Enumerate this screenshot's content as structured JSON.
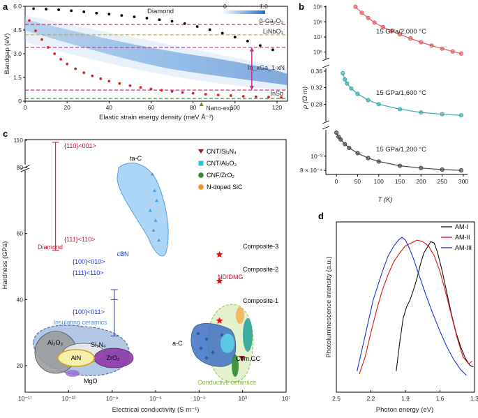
{
  "panels": {
    "a": "a",
    "b": "b",
    "c": "c",
    "d": "d"
  },
  "chart_data": [
    {
      "panel": "a",
      "type": "scatter",
      "title": "Diamond",
      "xlabel": "Elastic strain energy density (meV Å⁻³)",
      "ylabel": "Bandgap (eV)",
      "xlim": [
        0,
        125
      ],
      "ylim": [
        0,
        6.0
      ],
      "xticks": [
        "0",
        "20",
        "40",
        "60",
        "80",
        "100",
        "120"
      ],
      "yticks": [
        "0",
        "1.5",
        "3.0",
        "4.5",
        "6.0"
      ],
      "colorbar": {
        "min": "0",
        "max": "1.0"
      },
      "reference_lines": [
        {
          "label": "β-Ga₂O₃",
          "value": 4.85,
          "color": "#b03060"
        },
        {
          "label": "LiNbO₃",
          "value": 4.2,
          "color": "#d4a017"
        },
        {
          "label": "In_xGa_1-xN",
          "value": 3.4,
          "color": "#c0308a"
        },
        {
          "label": "InSb",
          "value": 0.7,
          "color": "#c0308a"
        },
        {
          "label": "",
          "value": 0.17,
          "color": "#2a9d3a"
        }
      ],
      "annotations": [
        "Nano-exp."
      ],
      "ingan_range": [
        0.7,
        3.4
      ],
      "series": [
        {
          "name": "upper bound",
          "color": "#000000",
          "x": [
            4,
            10,
            16,
            22,
            28,
            34,
            40,
            46,
            52,
            58,
            64,
            70,
            76,
            82,
            88,
            94,
            100,
            106,
            112,
            118
          ],
          "y": [
            5.85,
            5.82,
            5.78,
            5.72,
            5.65,
            5.57,
            5.5,
            5.42,
            5.33,
            5.25,
            5.15,
            5.05,
            4.9,
            4.72,
            4.52,
            4.3,
            4.05,
            3.8,
            3.52,
            3.25
          ]
        },
        {
          "name": "lower bound",
          "color": "#e02020",
          "x": [
            2,
            5,
            8,
            11,
            14,
            17,
            20,
            24,
            28,
            32,
            36,
            40,
            45,
            50,
            55,
            60,
            65,
            70,
            75,
            80,
            86,
            92,
            98,
            104,
            110,
            116,
            122
          ],
          "y": [
            5.1,
            4.45,
            3.9,
            3.4,
            3.0,
            2.65,
            2.35,
            2.05,
            1.8,
            1.6,
            1.42,
            1.27,
            1.12,
            0.98,
            0.87,
            0.77,
            0.69,
            0.62,
            0.55,
            0.5,
            0.44,
            0.39,
            0.35,
            0.31,
            0.28,
            0.26,
            0.24
          ]
        }
      ]
    },
    {
      "panel": "b",
      "type": "line",
      "xlabel": "T (K)",
      "ylabel": "ρ (Ω m)",
      "xlim": [
        -25,
        310
      ],
      "xticks": [
        "0",
        "50",
        "100",
        "150",
        "200",
        "250",
        "300"
      ],
      "subpanels": [
        {
          "label": "15 GPa/2,000 °C",
          "color": "#e05a5a",
          "scale": "log",
          "ylim": [
            300000.0,
            1200000000.0
          ],
          "yticks": [
            "10⁶",
            "10⁷",
            "10⁸",
            "10⁹"
          ],
          "x": [
            45,
            60,
            75,
            90,
            110,
            130,
            150,
            175,
            200,
            225,
            250,
            275,
            295
          ],
          "y": [
            1000000000.0,
            400000000.0,
            180000000.0,
            90000000.0,
            45000000.0,
            25000000.0,
            15000000.0,
            8000000.0,
            4500000.0,
            2700000.0,
            1700000.0,
            1100000.0,
            800000.0
          ]
        },
        {
          "label": "15 GPa/1,600 °C",
          "color": "#3aa8a8",
          "scale": "linear",
          "ylim": [
            0.235,
            0.37
          ],
          "yticks": [
            "0.28",
            "0.32",
            "0.36"
          ],
          "x": [
            15,
            20,
            25,
            35,
            50,
            75,
            100,
            150,
            200,
            250,
            295
          ],
          "y": [
            0.355,
            0.34,
            0.33,
            0.318,
            0.305,
            0.29,
            0.28,
            0.268,
            0.26,
            0.256,
            0.253
          ]
        },
        {
          "label": "15 GPa/1,200 °C",
          "color": "#444444",
          "scale": "log",
          "ylim": [
            0.00075,
            0.00155
          ],
          "yticks": [
            "8 × 10⁻⁴",
            "10⁻³"
          ],
          "x": [
            0,
            5,
            10,
            20,
            30,
            50,
            75,
            100,
            150,
            200,
            250,
            295
          ],
          "y": [
            0.00145,
            0.00136,
            0.0013,
            0.00121,
            0.00114,
            0.00105,
            0.00097,
            0.00092,
            0.00086,
            0.00083,
            0.00081,
            0.0008
          ]
        }
      ]
    },
    {
      "panel": "c",
      "type": "scatter",
      "xlabel": "Electrical conductivity (S m⁻¹)",
      "ylabel": "Hardness (GPa)",
      "xscale": "log",
      "xlim": [
        -17,
        7
      ],
      "xticks": [
        "10⁻¹⁷",
        "10⁻¹³",
        "10⁻⁹",
        "10⁻⁵",
        "10⁻¹",
        "10³",
        "10⁷"
      ],
      "yticks": [
        "20",
        "40",
        "60",
        "80",
        "110"
      ],
      "legend": [
        {
          "label": "CNT/Si₃N₄",
          "color": "#8b1a1a",
          "marker": "triangle-down"
        },
        {
          "label": "CNT/Al₂O₃",
          "color": "#26c6da",
          "marker": "square"
        },
        {
          "label": "CNF/ZrO₂",
          "color": "#2e8b2e",
          "marker": "circle"
        },
        {
          "label": "N-doped SiC",
          "color": "#f0901e",
          "marker": "circle"
        }
      ],
      "diamond": {
        "label": "Diamond",
        "orientations": [
          "{110}<001>",
          "{111}<110>"
        ],
        "hardness": [
          110,
          55
        ]
      },
      "cbn": {
        "label": "cBN",
        "orientations": [
          "{100}<010>",
          "{111}<110>",
          "{100}<011>"
        ],
        "hardness": [
          43,
          40,
          29
        ]
      },
      "composites": [
        {
          "label": "Composite-3",
          "conductivity_exp": 1.0,
          "hardness": 53
        },
        {
          "label": "Composite-2",
          "conductivity_exp": 1.0,
          "hardness": 45
        },
        {
          "label": "Composite-1",
          "conductivity_exp": 1.0,
          "hardness": 33
        }
      ],
      "regions": [
        "ta-C",
        "Insulating ceramics",
        "Al₂O₃",
        "Si₃N₄",
        "AlN",
        "ZrO₂",
        "MgO",
        "a-C",
        "Com.GC",
        "Conductive ceramics",
        "ND/DMG"
      ],
      "ta_c_points": {
        "x": [
          -5.3,
          -5.1,
          -4.9,
          -5.5,
          -5.0,
          -5.2,
          -4.7
        ],
        "y": [
          78,
          73,
          70,
          67,
          64,
          61,
          58
        ]
      }
    },
    {
      "panel": "d",
      "type": "line",
      "xlabel": "Photon energy (eV)",
      "ylabel": "Photoluminescence intensity (a.u.)",
      "xlim": [
        2.5,
        1.3
      ],
      "xticks": [
        "2.5",
        "2.2",
        "1.9",
        "1.6",
        "1.3"
      ],
      "series": [
        {
          "name": "AM-I",
          "color": "#111111",
          "x": [
            1.98,
            1.95,
            1.92,
            1.89,
            1.86,
            1.83,
            1.8,
            1.77,
            1.74,
            1.71,
            1.68,
            1.65,
            1.62,
            1.58,
            1.54,
            1.5,
            1.46,
            1.42,
            1.38,
            1.34,
            1.31
          ],
          "y": [
            0.05,
            0.25,
            0.42,
            0.5,
            0.55,
            0.62,
            0.7,
            0.8,
            0.88,
            0.92,
            0.96,
            0.95,
            0.88,
            0.75,
            0.6,
            0.45,
            0.32,
            0.22,
            0.14,
            0.09,
            0.08
          ]
        },
        {
          "name": "AM-II",
          "color": "#e01010",
          "x": [
            2.3,
            2.25,
            2.2,
            2.15,
            2.1,
            2.05,
            2.0,
            1.95,
            1.9,
            1.85,
            1.8,
            1.75,
            1.7,
            1.65,
            1.6,
            1.55,
            1.5,
            1.45,
            1.4,
            1.35,
            1.32
          ],
          "y": [
            0.03,
            0.15,
            0.32,
            0.48,
            0.62,
            0.73,
            0.82,
            0.88,
            0.93,
            0.95,
            0.97,
            0.96,
            0.93,
            0.86,
            0.75,
            0.6,
            0.44,
            0.28,
            0.15,
            0.1,
            0.12
          ]
        },
        {
          "name": "AM-III",
          "color": "#1a2ee0",
          "x": [
            2.32,
            2.25,
            2.18,
            2.1,
            2.05,
            2.0,
            1.96,
            1.93,
            1.9,
            1.87,
            1.83,
            1.78,
            1.72,
            1.66,
            1.6,
            1.54,
            1.48,
            1.42,
            1.37
          ],
          "y": [
            0.05,
            0.3,
            0.55,
            0.75,
            0.86,
            0.93,
            0.97,
            0.99,
            0.97,
            0.92,
            0.84,
            0.72,
            0.58,
            0.45,
            0.33,
            0.22,
            0.13,
            0.06,
            0.02
          ]
        }
      ]
    }
  ]
}
